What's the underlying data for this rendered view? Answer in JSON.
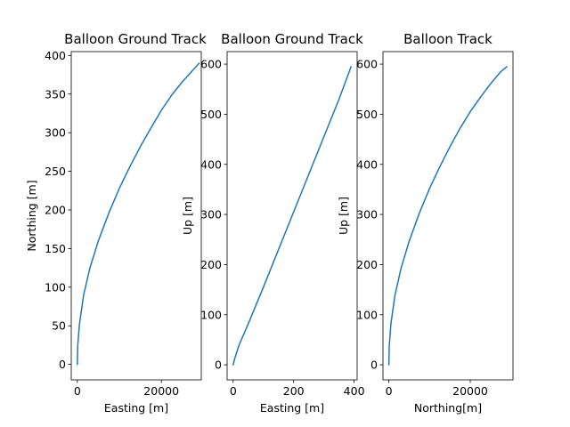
{
  "chart_data": [
    {
      "type": "line",
      "title": "Balloon Ground Track",
      "xlabel": "Easting [m]",
      "ylabel": "Northing [m]",
      "xlim": [
        -1450,
        29500
      ],
      "ylim": [
        -20,
        405
      ],
      "xticks": [
        0,
        20000
      ],
      "yticks": [
        0,
        50,
        100,
        150,
        200,
        250,
        300,
        350,
        400
      ],
      "grid": false,
      "series": [
        {
          "color": "#1f77b4",
          "x": [
            0,
            100,
            500,
            1500,
            3000,
            5000,
            7500,
            10000,
            12500,
            15000,
            17500,
            20000,
            22500,
            25000,
            27500,
            29000
          ],
          "y": [
            0,
            25,
            52,
            90,
            125,
            160,
            196,
            228,
            256,
            282,
            306,
            329,
            349,
            366,
            381,
            390
          ]
        }
      ]
    },
    {
      "type": "line",
      "title": "Balloon Ground Track",
      "xlabel": "Easting [m]",
      "ylabel": "Up [m]",
      "xlim": [
        -20,
        410
      ],
      "ylim": [
        -30,
        625
      ],
      "xticks": [
        0,
        200,
        400
      ],
      "yticks": [
        0,
        100,
        200,
        300,
        400,
        500,
        600
      ],
      "grid": false,
      "series": [
        {
          "color": "#1f77b4",
          "x": [
            0,
            5,
            10,
            20,
            50,
            100,
            150,
            200,
            250,
            300,
            350,
            390
          ],
          "y": [
            0,
            12,
            22,
            40,
            82,
            155,
            230,
            305,
            380,
            455,
            530,
            595
          ]
        }
      ]
    },
    {
      "type": "line",
      "title": "Balloon Track",
      "xlabel": "Northing[m]",
      "ylabel": "Up [m]",
      "xlim": [
        -1450,
        30500
      ],
      "ylim": [
        -30,
        625
      ],
      "xticks": [
        0,
        20000
      ],
      "yticks": [
        0,
        100,
        200,
        300,
        400,
        500,
        600
      ],
      "grid": false,
      "series": [
        {
          "color": "#1f77b4",
          "x": [
            0,
            100,
            500,
            1500,
            3000,
            5000,
            7500,
            10000,
            12500,
            15000,
            17500,
            20000,
            22500,
            25000,
            27500,
            29000
          ],
          "y": [
            0,
            38,
            82,
            139,
            193,
            247,
            303,
            352,
            395,
            435,
            472,
            505,
            534,
            561,
            585,
            595
          ]
        }
      ]
    }
  ]
}
